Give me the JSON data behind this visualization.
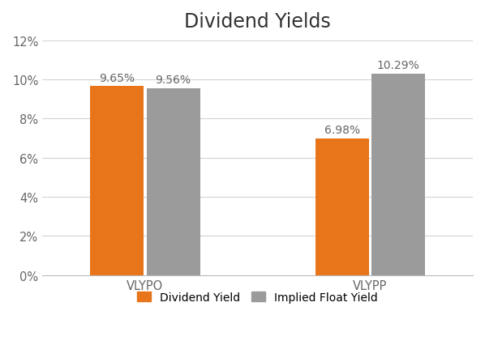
{
  "title": "Dividend Yields",
  "categories": [
    "VLYPO",
    "VLYPP"
  ],
  "dividend_yield": [
    9.65,
    6.98
  ],
  "implied_float_yield": [
    9.56,
    10.29
  ],
  "bar_color_dividend": "#E8751A",
  "bar_color_implied": "#9B9B9B",
  "ylim": [
    0,
    12
  ],
  "yticks": [
    0,
    2,
    4,
    6,
    8,
    10,
    12
  ],
  "ytick_labels": [
    "0%",
    "2%",
    "4%",
    "6%",
    "8%",
    "10%",
    "12%"
  ],
  "bar_width": 0.38,
  "group_centers": [
    0.5,
    2.1
  ],
  "legend_labels": [
    "Dividend Yield",
    "Implied Float Yield"
  ],
  "title_fontsize": 17,
  "label_fontsize": 10,
  "tick_fontsize": 10.5,
  "background_color": "#FFFFFF",
  "gridcolor": "#D3D3D3",
  "annotation_color": "#666666"
}
